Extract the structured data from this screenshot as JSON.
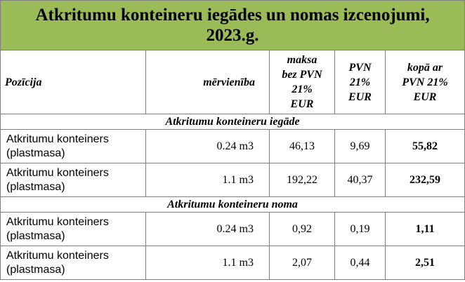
{
  "header": {
    "title": "Atkritumu konteineru iegādes un nomas izcenojumi, 2023.g."
  },
  "table": {
    "columns": [
      "Pozīcija",
      "mērvienība",
      "maksa\nbez PVN\n21%\nEUR",
      "PVN\n21%\nEUR",
      "kopā ar\nPVN 21%\nEUR"
    ],
    "sections": [
      {
        "title": "Atkritumu konteineru iegāde",
        "rows": [
          [
            "Atkritumu konteiners (plastmasa)",
            "0.24 m3",
            "46,13",
            "9,69",
            "55,82"
          ],
          [
            "Atkritumu konteiners (plastmasa)",
            "1.1 m3",
            "192,22",
            "40,37",
            "232,59"
          ]
        ]
      },
      {
        "title": "Atkritumu konteineru noma",
        "rows": [
          [
            "Atkritumu konteiners (plastmasa)",
            "0.24 m3",
            "0,92",
            "0,19",
            "1,11"
          ],
          [
            "Atkritumu konteiners (plastmasa)",
            "1.1 m3",
            "2,07",
            "0,44",
            "2,51"
          ]
        ]
      }
    ]
  }
}
